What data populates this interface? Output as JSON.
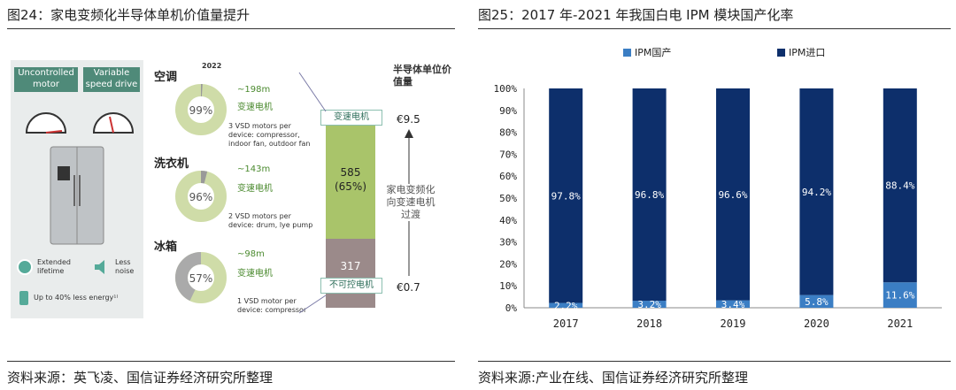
{
  "left": {
    "title": "图24：家电变频化半导体单机价值量提升",
    "source": "资料来源：英飞凌、国信证券经济研究所整理",
    "panel": {
      "label_uncontrolled": "Uncontrolled motor",
      "label_variable": "Variable speed drive",
      "feature_lifetime": "Extended lifetime",
      "feature_noise": "Less noise",
      "feature_energy": "Up to 40% less energy¹⁾"
    },
    "year": "2022",
    "appliances": [
      {
        "name": "空调",
        "share": "99%",
        "units": "~198m",
        "tag": "变速电机",
        "note1": "3 VSD motors per",
        "note2": "device: compressor,",
        "note3": "indoor fan, outdoor fan"
      },
      {
        "name": "洗衣机",
        "share": "96%",
        "units": "~143m",
        "tag": "变速电机",
        "note1": "2 VSD motors per",
        "note2": "device: drum, lye pump",
        "note3": ""
      },
      {
        "name": "冰箱",
        "share": "57%",
        "units": "~98m",
        "tag": "变速电机",
        "note1": "1 VSD motor per",
        "note2": "device: compressor",
        "note3": ""
      }
    ],
    "value_header": "半导体单位价值量",
    "bar": {
      "top_label": "变速电机",
      "bottom_label": "不可控电机",
      "green_value": "585",
      "green_pct": "(65%)",
      "gray_value": "317",
      "price_high": "€9.5",
      "price_low": "€0.7",
      "trend_text_1": "家电变频化",
      "trend_text_2": "向变速电机",
      "trend_text_3": "过渡"
    }
  },
  "right": {
    "title": "图25：2017 年-2021 年我国白电 IPM 模块国产化率",
    "source": "资料来源:产业在线、国信证券经济研究所整理",
    "legend_domestic": "IPM国产",
    "legend_import": "IPM进口"
  },
  "colors": {
    "domestic": "#3b7ec4",
    "import": "#0d2f6b",
    "green": "#a9c46a",
    "gray": "#9b8a8a"
  },
  "chart_data": {
    "type": "bar",
    "stacked": true,
    "percent": true,
    "title": "2017 年-2021 年我国白电 IPM 模块国产化率",
    "categories": [
      "2017",
      "2018",
      "2019",
      "2020",
      "2021"
    ],
    "series": [
      {
        "name": "IPM国产",
        "values": [
          2.2,
          3.2,
          3.4,
          5.8,
          11.6
        ],
        "labels": [
          "2.2%",
          "3.2%",
          "3.4%",
          "5.8%",
          "11.6%"
        ]
      },
      {
        "name": "IPM进口",
        "values": [
          97.8,
          96.8,
          96.6,
          94.2,
          88.4
        ],
        "labels": [
          "97.8%",
          "96.8%",
          "96.6%",
          "94.2%",
          "88.4%"
        ]
      }
    ],
    "yticks": [
      "0%",
      "10%",
      "20%",
      "30%",
      "40%",
      "50%",
      "60%",
      "70%",
      "80%",
      "90%",
      "100%"
    ],
    "ylim": [
      0,
      100
    ],
    "legend": "top"
  }
}
